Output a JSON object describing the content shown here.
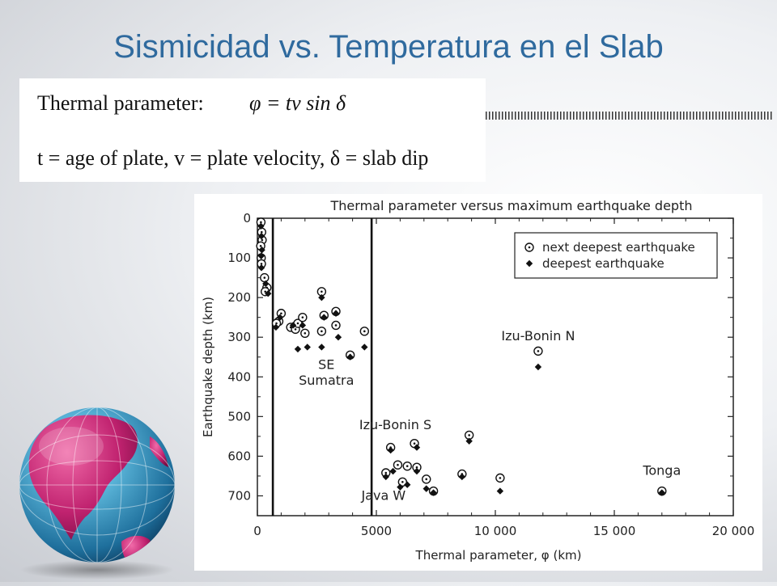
{
  "slide": {
    "title": "Sismicidad vs. Temperatura en el Slab"
  },
  "formula": {
    "label": "Thermal parameter:",
    "equation": "φ = tv sin δ",
    "legend": "t = age of plate, v = plate velocity, δ = slab dip"
  },
  "colors": {
    "title": "#2f6a9e",
    "globe_land": "#c0226f",
    "globe_ocean": "#4aa3c8"
  },
  "chart_data": {
    "type": "scatter",
    "title": "Thermal parameter versus maximum earthquake depth",
    "xlabel": "Thermal parameter, φ (km)",
    "ylabel": "Earthquake depth (km)",
    "xlim": [
      0,
      20000
    ],
    "ylim": [
      0,
      750
    ],
    "y_inverted": true,
    "x_ticks": [
      0,
      5000,
      10000,
      15000,
      20000
    ],
    "x_tick_labels": [
      "0",
      "5000",
      "10 000",
      "15 000",
      "20 000"
    ],
    "y_ticks": [
      0,
      100,
      200,
      300,
      400,
      500,
      600,
      700
    ],
    "y_tick_labels": [
      "0",
      "100",
      "200",
      "300",
      "400",
      "500",
      "600",
      "700"
    ],
    "vertical_lines": [
      650,
      4800
    ],
    "legend_position": "top-right",
    "annotations": [
      {
        "text": "SE",
        "x": 2900,
        "y": 380
      },
      {
        "text": "Sumatra",
        "x": 2900,
        "y": 420
      },
      {
        "text": "Izu-Bonin N",
        "x": 11800,
        "y": 308
      },
      {
        "text": "Izu-Bonin S",
        "x": 5800,
        "y": 532
      },
      {
        "text": "Java W",
        "x": 5300,
        "y": 710
      },
      {
        "text": "Tonga",
        "x": 17000,
        "y": 647
      }
    ],
    "series": [
      {
        "name": "next deepest earthquake",
        "marker": "circle-dot",
        "points": [
          [
            150,
            10
          ],
          [
            180,
            35
          ],
          [
            200,
            55
          ],
          [
            140,
            70
          ],
          [
            160,
            100
          ],
          [
            170,
            115
          ],
          [
            300,
            150
          ],
          [
            400,
            175
          ],
          [
            330,
            185
          ],
          [
            1000,
            240
          ],
          [
            900,
            260
          ],
          [
            800,
            265
          ],
          [
            1400,
            275
          ],
          [
            1600,
            280
          ],
          [
            1700,
            265
          ],
          [
            2000,
            290
          ],
          [
            1900,
            250
          ],
          [
            2700,
            185
          ],
          [
            2800,
            245
          ],
          [
            3300,
            235
          ],
          [
            2700,
            285
          ],
          [
            3300,
            270
          ],
          [
            4500,
            285
          ],
          [
            3900,
            345
          ],
          [
            11800,
            335
          ],
          [
            5600,
            578
          ],
          [
            5900,
            622
          ],
          [
            6300,
            625
          ],
          [
            6600,
            568
          ],
          [
            6700,
            628
          ],
          [
            5400,
            642
          ],
          [
            6100,
            665
          ],
          [
            7100,
            658
          ],
          [
            7400,
            688
          ],
          [
            8600,
            645
          ],
          [
            8900,
            547
          ],
          [
            10200,
            655
          ],
          [
            17000,
            688
          ]
        ]
      },
      {
        "name": "deepest earthquake",
        "marker": "diamond",
        "points": [
          [
            150,
            20
          ],
          [
            170,
            45
          ],
          [
            190,
            80
          ],
          [
            160,
            95
          ],
          [
            170,
            125
          ],
          [
            350,
            165
          ],
          [
            450,
            190
          ],
          [
            780,
            275
          ],
          [
            950,
            250
          ],
          [
            1500,
            270
          ],
          [
            1900,
            270
          ],
          [
            1700,
            330
          ],
          [
            2100,
            325
          ],
          [
            2700,
            200
          ],
          [
            2800,
            250
          ],
          [
            3300,
            240
          ],
          [
            3400,
            300
          ],
          [
            2700,
            325
          ],
          [
            4500,
            325
          ],
          [
            3900,
            350
          ],
          [
            11800,
            375
          ],
          [
            5600,
            585
          ],
          [
            5700,
            638
          ],
          [
            6000,
            678
          ],
          [
            6300,
            672
          ],
          [
            6700,
            578
          ],
          [
            6700,
            638
          ],
          [
            5400,
            652
          ],
          [
            7100,
            682
          ],
          [
            7400,
            692
          ],
          [
            8600,
            652
          ],
          [
            8900,
            562
          ],
          [
            10200,
            688
          ],
          [
            17000,
            692
          ]
        ]
      }
    ]
  }
}
